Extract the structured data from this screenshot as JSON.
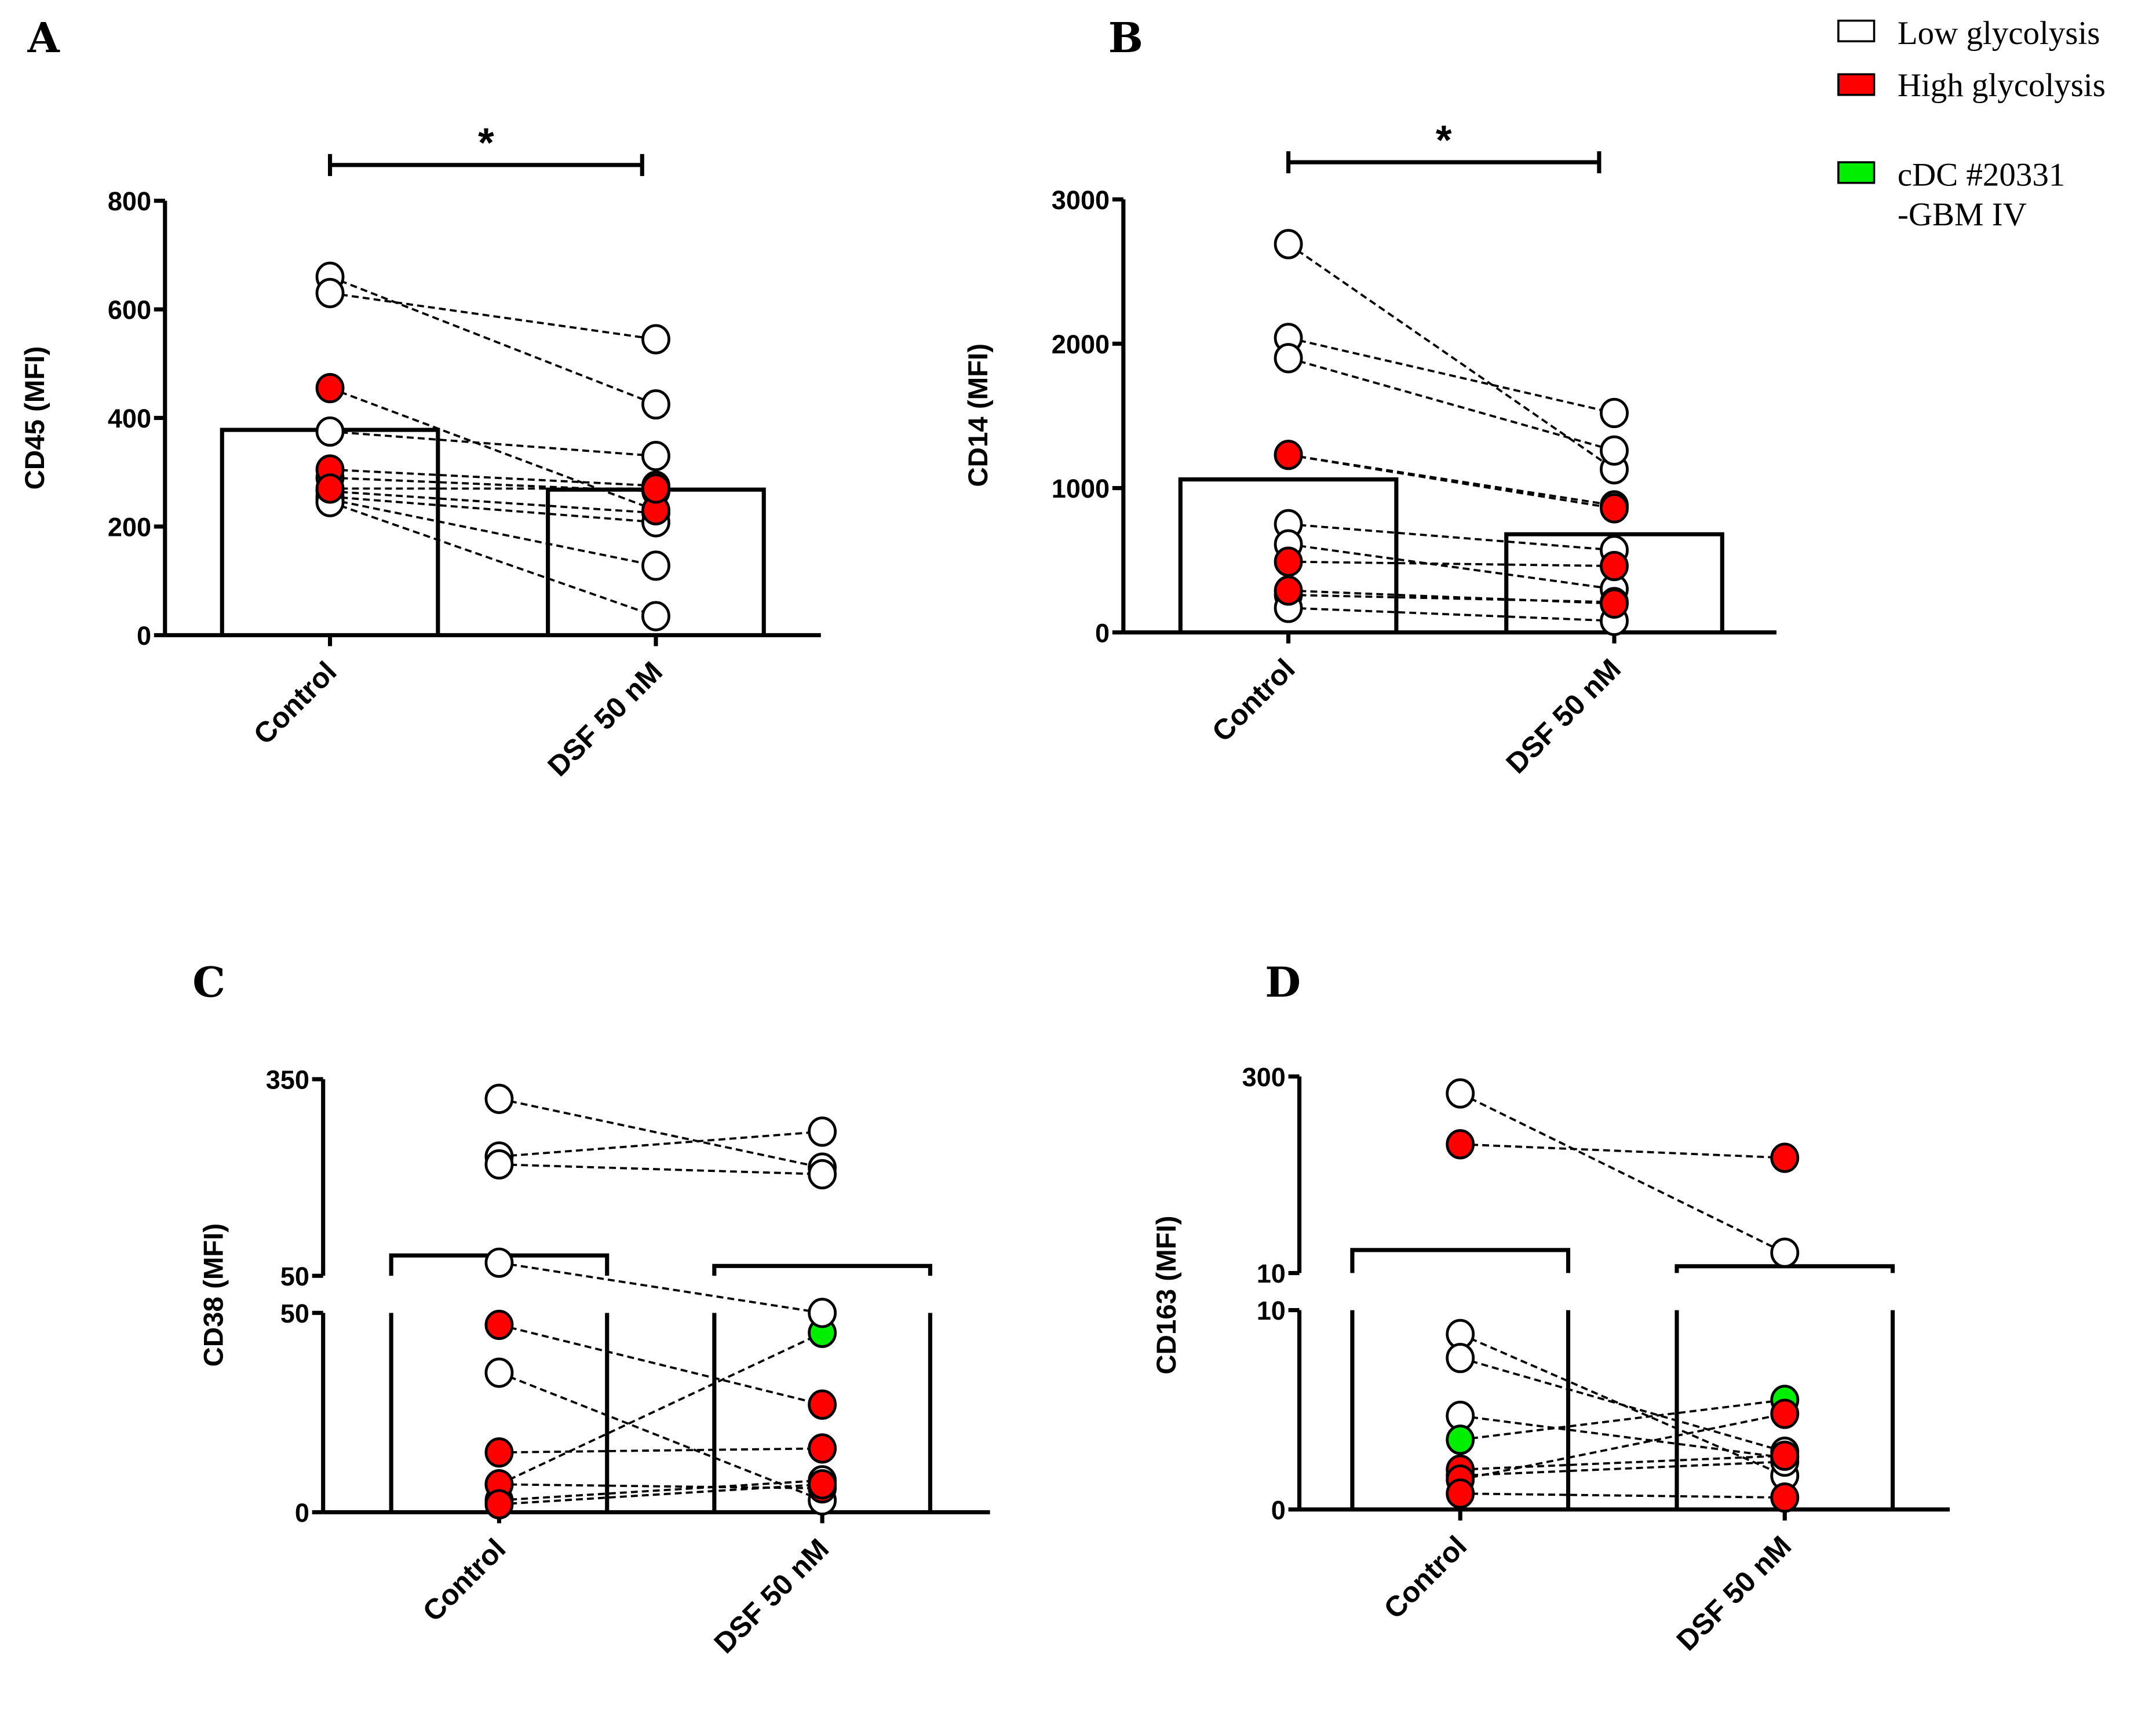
{
  "colors": {
    "low": "#ffffff",
    "high": "#ff0000",
    "cdc": "#00ee00",
    "line": "#000000"
  },
  "legend": [
    {
      "group": "low",
      "label": "Low glycolysis"
    },
    {
      "group": "high",
      "label": "High glycolysis"
    },
    {
      "group": "cdc",
      "label": "cDC #20331",
      "label2": "-GBM IV"
    }
  ],
  "chart_data": [
    {
      "panel": "A",
      "type": "bar",
      "ylabel": "CD45 (MFI)",
      "categories": [
        "Control",
        "DSF 50 nM"
      ],
      "bar_values": [
        378,
        268
      ],
      "ylim": [
        0,
        800
      ],
      "yticks": [
        "0",
        "200",
        "400",
        "600",
        "800"
      ],
      "ytick_values": [
        0,
        200,
        400,
        600,
        800
      ],
      "significance": "*",
      "pairs": [
        {
          "control": 660,
          "dsf": 425,
          "group": "low"
        },
        {
          "control": 630,
          "dsf": 545,
          "group": "low"
        },
        {
          "control": 375,
          "dsf": 330,
          "group": "low"
        },
        {
          "control": 290,
          "dsf": 265,
          "group": "low"
        },
        {
          "control": 265,
          "dsf": 225,
          "group": "low"
        },
        {
          "control": 255,
          "dsf": 208,
          "group": "low"
        },
        {
          "control": 250,
          "dsf": 128,
          "group": "low"
        },
        {
          "control": 245,
          "dsf": 35,
          "group": "low"
        },
        {
          "control": 455,
          "dsf": 230,
          "group": "high"
        },
        {
          "control": 305,
          "dsf": 275,
          "group": "high"
        },
        {
          "control": 270,
          "dsf": 270,
          "group": "high"
        }
      ]
    },
    {
      "panel": "B",
      "type": "bar",
      "ylabel": "CD14 (MFI)",
      "categories": [
        "Control",
        "DSF 50 nM"
      ],
      "bar_values": [
        1060,
        680
      ],
      "ylim": [
        0,
        3000
      ],
      "yticks": [
        "0",
        "1000",
        "2000",
        "3000"
      ],
      "ytick_values": [
        0,
        1000,
        2000,
        3000
      ],
      "significance": "*",
      "pairs": [
        {
          "control": 2690,
          "dsf": 1130,
          "group": "low"
        },
        {
          "control": 2040,
          "dsf": 1520,
          "group": "low"
        },
        {
          "control": 1900,
          "dsf": 1260,
          "group": "low"
        },
        {
          "control": 1230,
          "dsf": 880,
          "group": "low"
        },
        {
          "control": 750,
          "dsf": 570,
          "group": "low"
        },
        {
          "control": 610,
          "dsf": 300,
          "group": "low"
        },
        {
          "control": 260,
          "dsf": 210,
          "group": "low"
        },
        {
          "control": 170,
          "dsf": 80,
          "group": "low"
        },
        {
          "control": 1230,
          "dsf": 860,
          "group": "high"
        },
        {
          "control": 490,
          "dsf": 460,
          "group": "high"
        },
        {
          "control": 290,
          "dsf": 200,
          "group": "high"
        }
      ]
    },
    {
      "panel": "C",
      "type": "bar",
      "ylabel": "CD38 (MFI)",
      "categories": [
        "Control",
        "DSF 50 nM"
      ],
      "bar_values": [
        81,
        65
      ],
      "axis_break": true,
      "segments": [
        [
          0,
          50
        ],
        [
          50,
          350
        ]
      ],
      "yticks": [
        "0",
        "50",
        "50",
        "350"
      ],
      "ytick_values": [
        0,
        50,
        50,
        350
      ],
      "pairs": [
        {
          "control": 7,
          "dsf": 45,
          "group": "cdc"
        },
        {
          "control": 320,
          "dsf": 215,
          "group": "low"
        },
        {
          "control": 232,
          "dsf": 270,
          "group": "low"
        },
        {
          "control": 220,
          "dsf": 205,
          "group": "low"
        },
        {
          "control": 70,
          "dsf": 50,
          "group": "low"
        },
        {
          "control": 35,
          "dsf": 3,
          "group": "low"
        },
        {
          "control": 3,
          "dsf": 8,
          "group": "low"
        },
        {
          "control": 47,
          "dsf": 27,
          "group": "high"
        },
        {
          "control": 15,
          "dsf": 16,
          "group": "high"
        },
        {
          "control": 7,
          "dsf": 6,
          "group": "high"
        },
        {
          "control": 2,
          "dsf": 7,
          "group": "high"
        }
      ]
    },
    {
      "panel": "D",
      "type": "bar",
      "ylabel": "CD163 (MFI)",
      "categories": [
        "Control",
        "DSF 50 nM"
      ],
      "bar_values": [
        44,
        20
      ],
      "axis_break": true,
      "segments": [
        [
          0,
          10
        ],
        [
          10,
          300
        ]
      ],
      "yticks": [
        "0",
        "10",
        "10",
        "300"
      ],
      "ytick_values": [
        0,
        10,
        10,
        300
      ],
      "pairs": [
        {
          "control": 275,
          "dsf": 40,
          "group": "low"
        },
        {
          "control": 8.8,
          "dsf": 1.7,
          "group": "low"
        },
        {
          "control": 7.6,
          "dsf": 2.9,
          "group": "low"
        },
        {
          "control": 4.7,
          "dsf": 2.6,
          "group": "low"
        },
        {
          "control": 1.7,
          "dsf": 2.4,
          "group": "low"
        },
        {
          "control": 3.5,
          "dsf": 5.5,
          "group": "cdc"
        },
        {
          "control": 200,
          "dsf": 180,
          "group": "high"
        },
        {
          "control": 2.0,
          "dsf": 2.7,
          "group": "high"
        },
        {
          "control": 1.5,
          "dsf": 4.8,
          "group": "high"
        },
        {
          "control": 0.8,
          "dsf": 0.6,
          "group": "high"
        }
      ]
    }
  ]
}
